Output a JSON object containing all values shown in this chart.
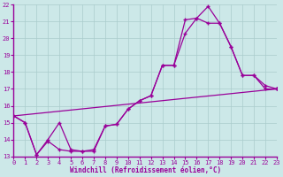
{
  "xlabel": "Windchill (Refroidissement éolien,°C)",
  "bg_color": "#cce8e8",
  "grid_color": "#aacccc",
  "line_color": "#990099",
  "xlim": [
    0,
    23
  ],
  "ylim": [
    13,
    22
  ],
  "yticks": [
    13,
    14,
    15,
    16,
    17,
    18,
    19,
    20,
    21,
    22
  ],
  "xticks": [
    0,
    1,
    2,
    3,
    4,
    5,
    6,
    7,
    8,
    9,
    10,
    11,
    12,
    13,
    14,
    15,
    16,
    17,
    18,
    19,
    20,
    21,
    22,
    23
  ],
  "line1_x": [
    0,
    1,
    2,
    3,
    4,
    5,
    6,
    7,
    8,
    9,
    10,
    11,
    12,
    13,
    14,
    15,
    16,
    17,
    18,
    19,
    20,
    21,
    22,
    23
  ],
  "line1_y": [
    15.4,
    15.0,
    13.1,
    13.9,
    13.4,
    13.3,
    13.3,
    13.4,
    14.8,
    14.9,
    15.8,
    16.3,
    16.6,
    18.4,
    18.4,
    20.3,
    21.2,
    21.9,
    20.9,
    19.5,
    17.8,
    17.8,
    17.0,
    17.0
  ],
  "line2_x": [
    0,
    1,
    2,
    3,
    4,
    5,
    6,
    7,
    8,
    9,
    10,
    11,
    12,
    13,
    14,
    15,
    16,
    17,
    18,
    19,
    20,
    21,
    22,
    23
  ],
  "line2_y": [
    15.4,
    15.0,
    13.1,
    14.0,
    15.0,
    13.4,
    13.3,
    13.3,
    14.8,
    14.9,
    15.8,
    16.3,
    16.6,
    18.4,
    18.4,
    21.1,
    21.2,
    20.9,
    20.9,
    19.5,
    17.8,
    17.8,
    17.2,
    17.0
  ],
  "line3_x": [
    0,
    23
  ],
  "line3_y": [
    15.4,
    17.0
  ]
}
